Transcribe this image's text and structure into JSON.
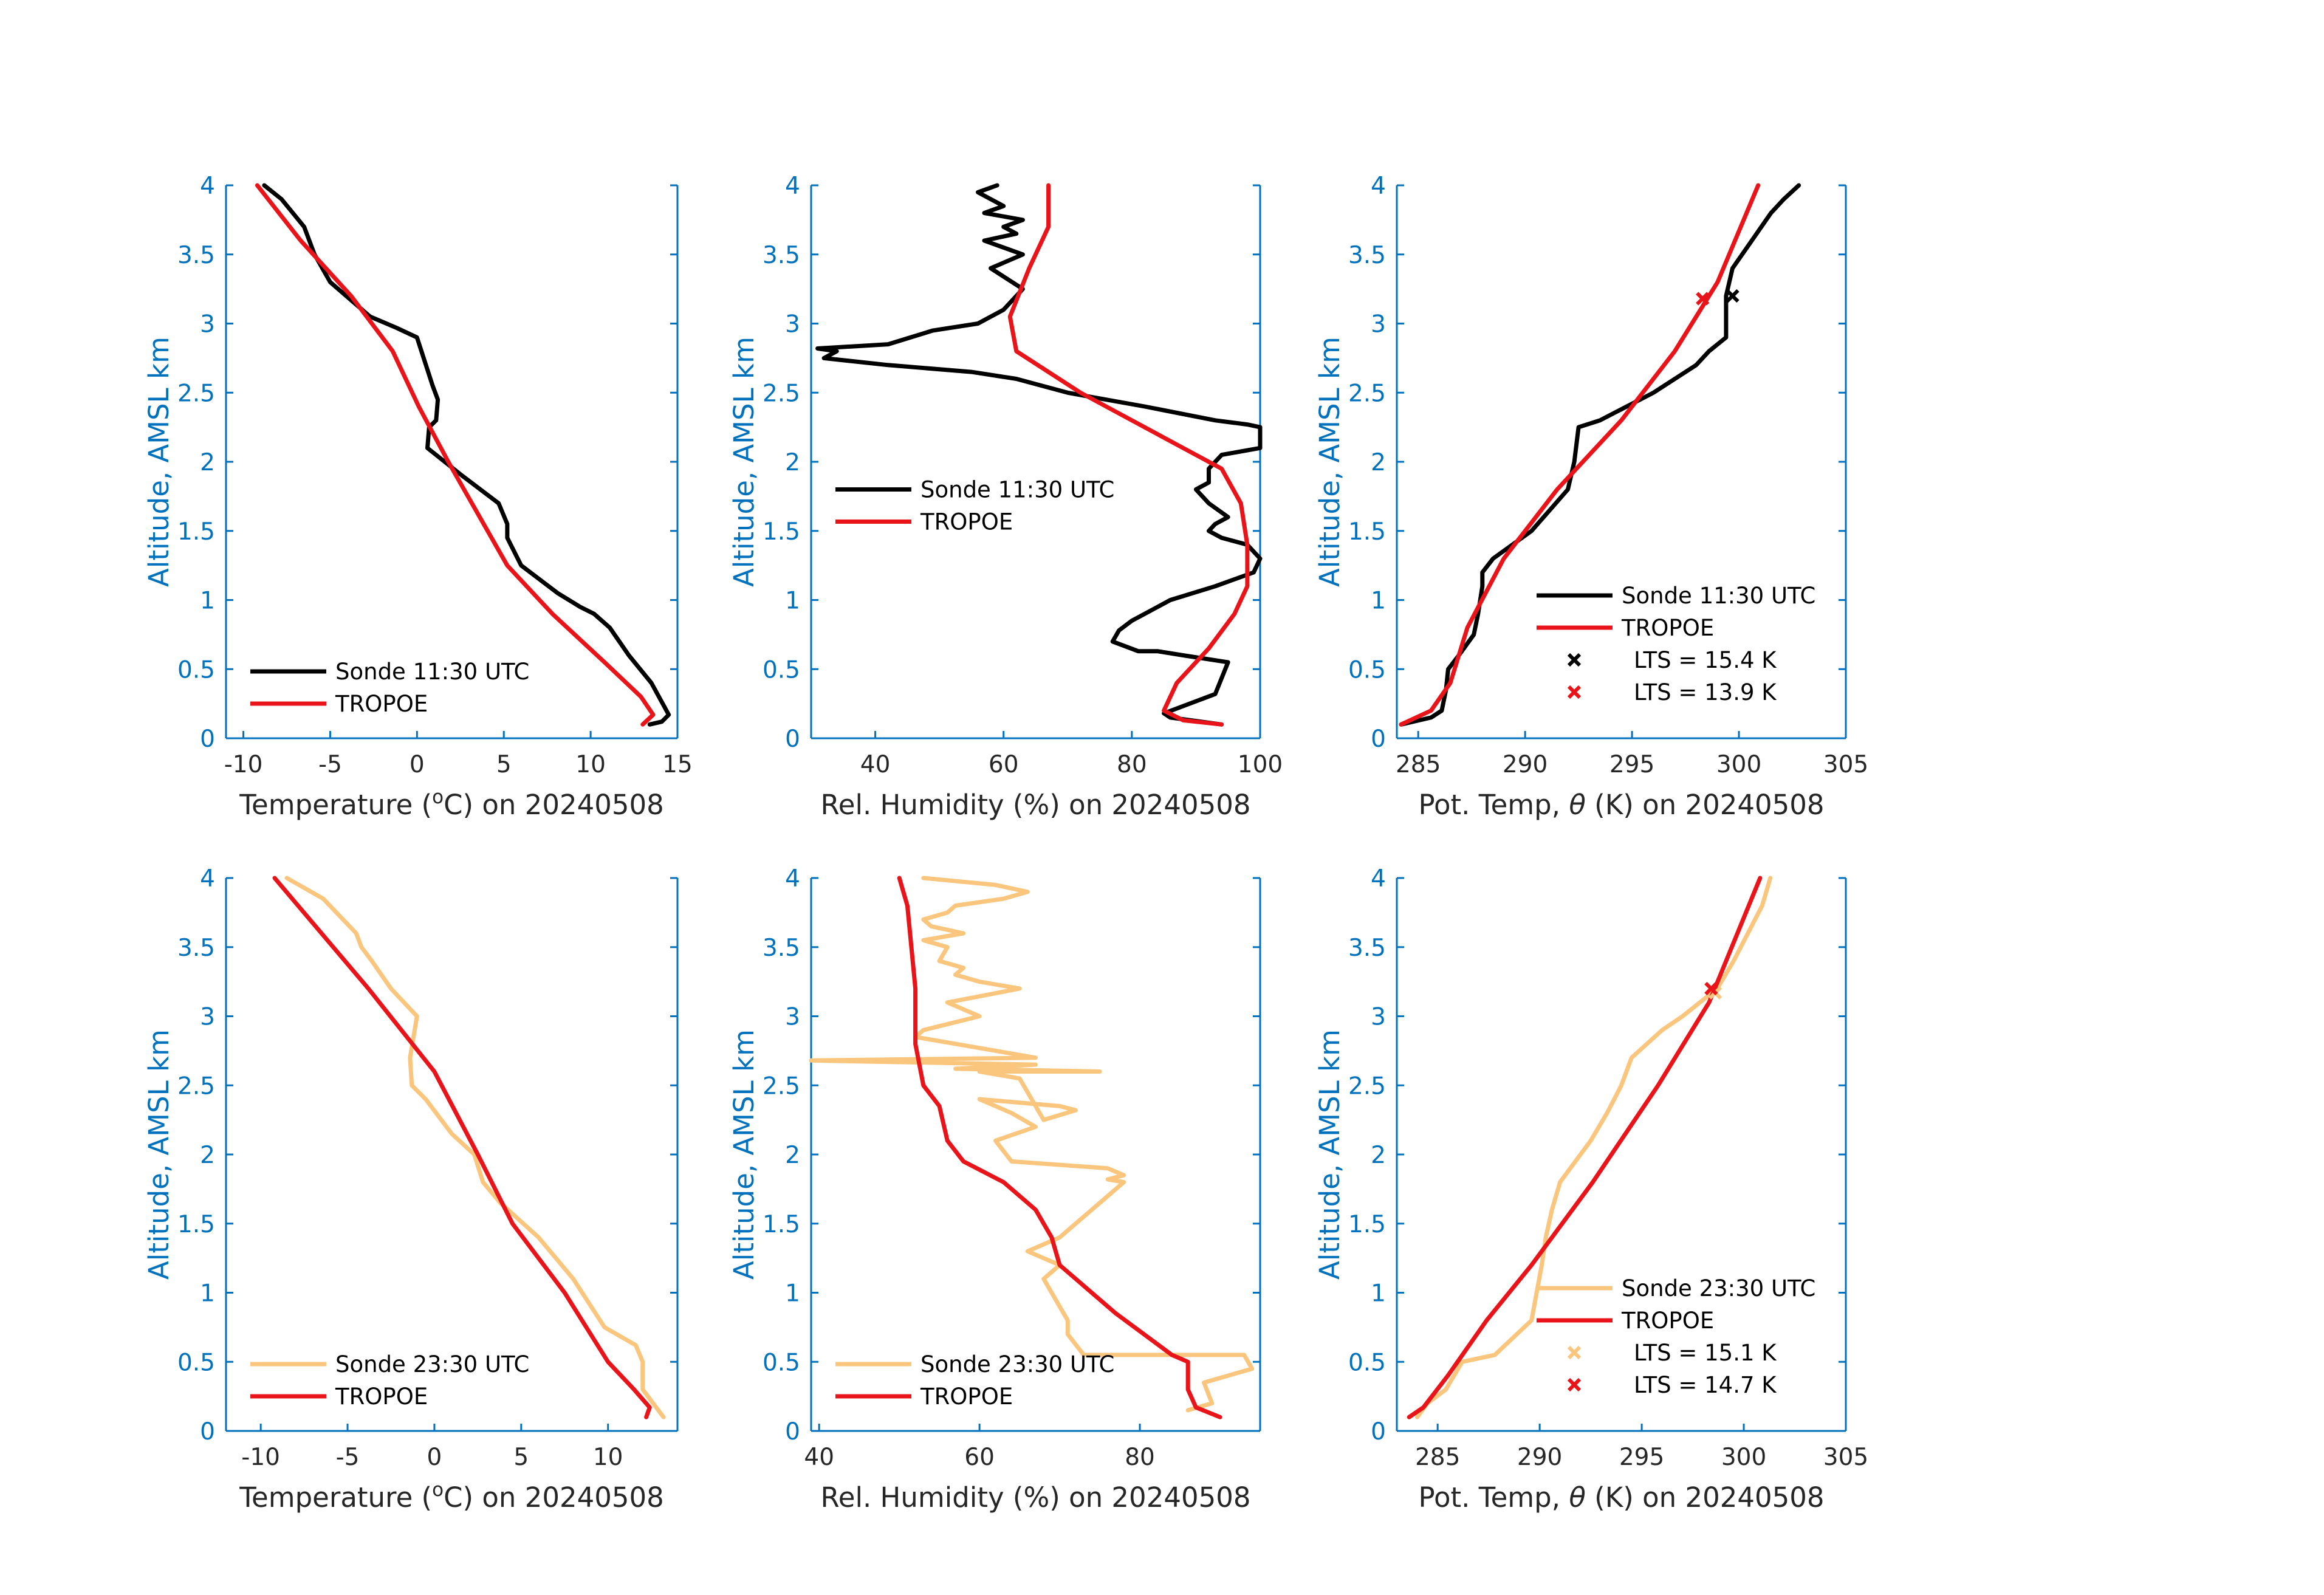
{
  "colors": {
    "axis": "#0072BD",
    "ticktext": "#262626",
    "sonde_day": "#000000",
    "sonde_night": "#FAC57D",
    "tropoe": "#E8141A"
  },
  "chart_data": [
    {
      "type": "line",
      "panel": "temp-day",
      "xlabel_pre": "Temperature (",
      "xlabel_sup": "o",
      "xlabel_post": "C) on 20240508",
      "ylabel": "Altitude, AMSL km",
      "xlim": [
        -11,
        15
      ],
      "ylim": [
        0,
        4
      ],
      "xticks": [
        -10,
        -5,
        0,
        5,
        10,
        15
      ],
      "xtick_labels": [
        "-10",
        "-5",
        "0",
        "5",
        "10",
        "15"
      ],
      "yticks": [
        0,
        0.5,
        1,
        1.5,
        2,
        2.5,
        3,
        3.5,
        4
      ],
      "ytick_labels": [
        "0",
        "0.5",
        "1",
        "1.5",
        "2",
        "2.5",
        "3",
        "3.5",
        "4"
      ],
      "legend_location": "bottom-left",
      "series": [
        {
          "name": "Sonde 11:30 UTC",
          "color": "#000000",
          "marker": null,
          "x": [
            13.4,
            14.1,
            14.5,
            13.5,
            12.2,
            11.1,
            10.2,
            9.4,
            8.1,
            6.0,
            5.2,
            5.2,
            4.7,
            2.6,
            0.6,
            0.7,
            1.1,
            1.2,
            0.9,
            0.0,
            -1.2,
            -2.7,
            -5.0,
            -5.9,
            -6.5,
            -7.8,
            -8.8
          ],
          "y": [
            0.1,
            0.12,
            0.17,
            0.4,
            0.6,
            0.8,
            0.9,
            0.95,
            1.05,
            1.25,
            1.45,
            1.55,
            1.7,
            1.9,
            2.1,
            2.25,
            2.3,
            2.45,
            2.55,
            2.9,
            2.97,
            3.05,
            3.3,
            3.5,
            3.7,
            3.9,
            4.0
          ]
        },
        {
          "name": "TROPOE",
          "color": "#E8141A",
          "marker": null,
          "x": [
            13.0,
            13.6,
            12.9,
            10.8,
            7.8,
            5.2,
            1.8,
            0.1,
            -1.4,
            -3.8,
            -6.7,
            -9.2
          ],
          "y": [
            0.1,
            0.17,
            0.3,
            0.55,
            0.9,
            1.25,
            2.0,
            2.4,
            2.8,
            3.2,
            3.6,
            4.0
          ]
        }
      ]
    },
    {
      "type": "line",
      "panel": "rh-day",
      "xlabel_pre": "Rel. Humidity (%) on 20240508",
      "xlabel_sup": "",
      "xlabel_post": "",
      "ylabel": "Altitude, AMSL km",
      "xlim": [
        30,
        100
      ],
      "ylim": [
        0,
        4
      ],
      "xticks": [
        40,
        60,
        80,
        100
      ],
      "xtick_labels": [
        "40",
        "60",
        "80",
        "100"
      ],
      "yticks": [
        0,
        0.5,
        1,
        1.5,
        2,
        2.5,
        3,
        3.5,
        4
      ],
      "ytick_labels": [
        "0",
        "0.5",
        "1",
        "1.5",
        "2",
        "2.5",
        "3",
        "3.5",
        "4"
      ],
      "legend_location": "middle-left",
      "series": [
        {
          "name": "Sonde 11:30 UTC",
          "color": "#000000",
          "marker": null,
          "x": [
            94,
            86,
            85,
            93,
            95,
            88,
            84,
            81,
            77,
            78,
            80,
            84,
            86,
            93,
            99,
            100,
            98,
            94,
            92,
            93,
            95,
            92,
            90,
            92,
            92,
            94,
            100,
            100,
            98,
            93,
            82,
            70,
            62,
            55,
            42,
            32,
            34,
            31,
            42,
            49,
            56,
            60,
            63,
            58,
            63,
            57,
            62,
            60,
            63,
            57,
            60,
            56,
            59
          ],
          "y": [
            0.1,
            0.15,
            0.18,
            0.32,
            0.55,
            0.6,
            0.63,
            0.63,
            0.7,
            0.78,
            0.85,
            0.95,
            1.0,
            1.1,
            1.2,
            1.3,
            1.4,
            1.45,
            1.5,
            1.55,
            1.6,
            1.7,
            1.8,
            1.85,
            1.95,
            2.05,
            2.1,
            2.25,
            2.27,
            2.3,
            2.4,
            2.5,
            2.6,
            2.65,
            2.7,
            2.75,
            2.8,
            2.82,
            2.85,
            2.95,
            3.0,
            3.1,
            3.25,
            3.4,
            3.5,
            3.6,
            3.65,
            3.7,
            3.75,
            3.8,
            3.85,
            3.95,
            4.0
          ]
        },
        {
          "name": "TROPOE",
          "color": "#E8141A",
          "marker": null,
          "x": [
            94,
            88,
            85,
            87,
            92,
            96,
            98,
            98,
            97,
            94,
            88,
            80,
            72,
            62,
            61,
            64,
            67,
            67
          ],
          "y": [
            0.1,
            0.13,
            0.2,
            0.4,
            0.65,
            0.9,
            1.1,
            1.4,
            1.7,
            1.95,
            2.1,
            2.3,
            2.5,
            2.8,
            3.05,
            3.4,
            3.7,
            4.0
          ]
        }
      ]
    },
    {
      "type": "line",
      "panel": "theta-day",
      "xlabel_pre": "Pot. Temp, ",
      "xlabel_sup": "",
      "xlabel_post": "θ (K) on 20240508",
      "ylabel": "Altitude, AMSL km",
      "xlim": [
        284,
        305
      ],
      "ylim": [
        0,
        4
      ],
      "xticks": [
        285,
        290,
        295,
        300,
        305
      ],
      "xtick_labels": [
        "285",
        "290",
        "295",
        "300",
        "305"
      ],
      "yticks": [
        0,
        0.5,
        1,
        1.5,
        2,
        2.5,
        3,
        3.5,
        4
      ],
      "ytick_labels": [
        "0",
        "0.5",
        "1",
        "1.5",
        "2",
        "2.5",
        "3",
        "3.5",
        "4"
      ],
      "legend_location": "bottom-right",
      "series": [
        {
          "name": "Sonde 11:30 UTC",
          "color": "#000000",
          "marker": null,
          "x": [
            284.2,
            285.6,
            286.1,
            286.3,
            286.4,
            286.9,
            287.6,
            287.8,
            288.0,
            288.0,
            288.5,
            290.3,
            292.0,
            292.3,
            292.5,
            293.5,
            296.0,
            298.0,
            298.6,
            299.4,
            299.4,
            299.7,
            300.6,
            301.5,
            302.1,
            302.8
          ],
          "y": [
            0.1,
            0.15,
            0.2,
            0.35,
            0.5,
            0.6,
            0.75,
            0.9,
            1.1,
            1.2,
            1.3,
            1.5,
            1.8,
            2.0,
            2.25,
            2.3,
            2.5,
            2.7,
            2.8,
            2.9,
            3.2,
            3.4,
            3.6,
            3.8,
            3.9,
            4.0
          ]
        },
        {
          "name": "TROPOE",
          "color": "#E8141A",
          "marker": null,
          "x": [
            284.2,
            285.6,
            286.5,
            287.3,
            289.0,
            291.5,
            294.5,
            297.0,
            299.0,
            300.9
          ],
          "y": [
            0.1,
            0.2,
            0.4,
            0.8,
            1.3,
            1.8,
            2.3,
            2.8,
            3.3,
            4.0
          ]
        },
        {
          "name": "LTS = 15.4 K",
          "color": "#000000",
          "marker": "x",
          "x": [
            299.7
          ],
          "y": [
            3.2
          ]
        },
        {
          "name": "LTS = 13.9 K",
          "color": "#E8141A",
          "marker": "x",
          "x": [
            298.3
          ],
          "y": [
            3.18
          ]
        }
      ]
    },
    {
      "type": "line",
      "panel": "temp-night",
      "xlabel_pre": "Temperature (",
      "xlabel_sup": "o",
      "xlabel_post": "C) on 20240508",
      "ylabel": "Altitude, AMSL km",
      "xlim": [
        -12,
        14
      ],
      "ylim": [
        0,
        4
      ],
      "xticks": [
        -10,
        -5,
        0,
        5,
        10
      ],
      "xtick_labels": [
        "-10",
        "-5",
        "0",
        "5",
        "10"
      ],
      "yticks": [
        0,
        0.5,
        1,
        1.5,
        2,
        2.5,
        3,
        3.5,
        4
      ],
      "ytick_labels": [
        "0",
        "0.5",
        "1",
        "1.5",
        "2",
        "2.5",
        "3",
        "3.5",
        "4"
      ],
      "legend_location": "bottom-left",
      "series": [
        {
          "name": "Sonde 23:30 UTC",
          "color": "#FAC57D",
          "marker": null,
          "x": [
            13.2,
            12.6,
            12.0,
            12.0,
            11.6,
            9.8,
            8.0,
            6.0,
            3.8,
            2.8,
            2.3,
            1.0,
            -0.5,
            -1.3,
            -1.4,
            -1.0,
            -2.5,
            -3.6,
            -4.2,
            -4.5,
            -6.4,
            -8.5
          ],
          "y": [
            0.1,
            0.2,
            0.3,
            0.5,
            0.62,
            0.75,
            1.1,
            1.4,
            1.65,
            1.8,
            2.0,
            2.15,
            2.4,
            2.5,
            2.7,
            3.0,
            3.2,
            3.4,
            3.5,
            3.6,
            3.85,
            4.0
          ]
        },
        {
          "name": "TROPOE",
          "color": "#E8141A",
          "marker": null,
          "x": [
            12.2,
            12.4,
            11.5,
            10.0,
            7.5,
            4.5,
            2.5,
            0.0,
            -3.8,
            -9.2
          ],
          "y": [
            0.1,
            0.17,
            0.3,
            0.5,
            1.0,
            1.5,
            2.0,
            2.6,
            3.2,
            4.0
          ]
        }
      ]
    },
    {
      "type": "line",
      "panel": "rh-night",
      "xlabel_pre": "Rel. Humidity (%) on 20240508",
      "xlabel_sup": "",
      "xlabel_post": "",
      "ylabel": "Altitude, AMSL km",
      "xlim": [
        39,
        95
      ],
      "ylim": [
        0,
        4
      ],
      "xticks": [
        40,
        60,
        80
      ],
      "xtick_labels": [
        "40",
        "60",
        "80"
      ],
      "yticks": [
        0,
        0.5,
        1,
        1.5,
        2,
        2.5,
        3,
        3.5,
        4
      ],
      "ytick_labels": [
        "0",
        "0.5",
        "1",
        "1.5",
        "2",
        "2.5",
        "3",
        "3.5",
        "4"
      ],
      "legend_location": "bottom-left",
      "series": [
        {
          "name": "Sonde 23:30 UTC",
          "color": "#FAC57D",
          "marker": null,
          "x": [
            86,
            89,
            88,
            94,
            93,
            80,
            73,
            71,
            71,
            70,
            68,
            70,
            66,
            70,
            74,
            76,
            78,
            76,
            78,
            76,
            64,
            62,
            67,
            64,
            60,
            70,
            72,
            68,
            65,
            60,
            75,
            57,
            67,
            39,
            67,
            52,
            53,
            60,
            56,
            65,
            60,
            57,
            58,
            55,
            56,
            53,
            58,
            54,
            53,
            56,
            57,
            63,
            66,
            62,
            53
          ],
          "y": [
            0.15,
            0.2,
            0.35,
            0.45,
            0.55,
            0.55,
            0.55,
            0.7,
            0.8,
            0.9,
            1.1,
            1.2,
            1.3,
            1.4,
            1.6,
            1.7,
            1.8,
            1.82,
            1.85,
            1.9,
            1.95,
            2.1,
            2.2,
            2.3,
            2.4,
            2.35,
            2.32,
            2.25,
            2.55,
            2.6,
            2.6,
            2.62,
            2.65,
            2.68,
            2.7,
            2.85,
            2.9,
            3.0,
            3.1,
            3.2,
            3.25,
            3.3,
            3.35,
            3.4,
            3.5,
            3.55,
            3.6,
            3.65,
            3.7,
            3.75,
            3.8,
            3.85,
            3.9,
            3.95,
            4.0
          ]
        },
        {
          "name": "TROPOE",
          "color": "#E8141A",
          "marker": null,
          "x": [
            90,
            87,
            86,
            86,
            84,
            77,
            70,
            69,
            67,
            63,
            58,
            56,
            55,
            53,
            52,
            52,
            51,
            50
          ],
          "y": [
            0.1,
            0.17,
            0.3,
            0.5,
            0.55,
            0.85,
            1.2,
            1.4,
            1.6,
            1.8,
            1.95,
            2.1,
            2.35,
            2.5,
            2.8,
            3.2,
            3.8,
            4.0
          ]
        }
      ]
    },
    {
      "type": "line",
      "panel": "theta-night",
      "xlabel_pre": "Pot. Temp, ",
      "xlabel_sup": "",
      "xlabel_post": "θ (K) on 20240508",
      "ylabel": "Altitude, AMSL km",
      "xlim": [
        283,
        305
      ],
      "ylim": [
        0,
        4
      ],
      "xticks": [
        285,
        290,
        295,
        300,
        305
      ],
      "xtick_labels": [
        "285",
        "290",
        "295",
        "300",
        "305"
      ],
      "yticks": [
        0,
        0.5,
        1,
        1.5,
        2,
        2.5,
        3,
        3.5,
        4
      ],
      "ytick_labels": [
        "0",
        "0.5",
        "1",
        "1.5",
        "2",
        "2.5",
        "3",
        "3.5",
        "4"
      ],
      "legend_location": "bottom-right",
      "series": [
        {
          "name": "Sonde 23:30 UTC",
          "color": "#FAC57D",
          "marker": null,
          "x": [
            284.0,
            284.5,
            285.4,
            286.2,
            287.8,
            289.6,
            290.1,
            290.3,
            290.6,
            291.0,
            292.0,
            292.5,
            293.3,
            294.0,
            294.5,
            296.0,
            297.0,
            298.7,
            299.5,
            300.2,
            300.9,
            301.3
          ],
          "y": [
            0.1,
            0.2,
            0.3,
            0.5,
            0.55,
            0.8,
            1.2,
            1.4,
            1.6,
            1.8,
            2.0,
            2.1,
            2.3,
            2.5,
            2.7,
            2.9,
            3.0,
            3.2,
            3.4,
            3.6,
            3.8,
            4.0
          ]
        },
        {
          "name": "TROPOE",
          "color": "#E8141A",
          "marker": null,
          "x": [
            283.6,
            284.3,
            285.5,
            287.4,
            289.6,
            292.6,
            295.8,
            298.3,
            300.8
          ],
          "y": [
            0.1,
            0.17,
            0.4,
            0.8,
            1.2,
            1.8,
            2.5,
            3.1,
            4.0
          ]
        },
        {
          "name": "LTS = 15.1 K",
          "color": "#FAC57D",
          "marker": "x",
          "x": [
            298.6
          ],
          "y": [
            3.17
          ]
        },
        {
          "name": "LTS = 14.7 K",
          "color": "#E8141A",
          "marker": "x",
          "x": [
            298.4
          ],
          "y": [
            3.2
          ]
        }
      ]
    }
  ]
}
